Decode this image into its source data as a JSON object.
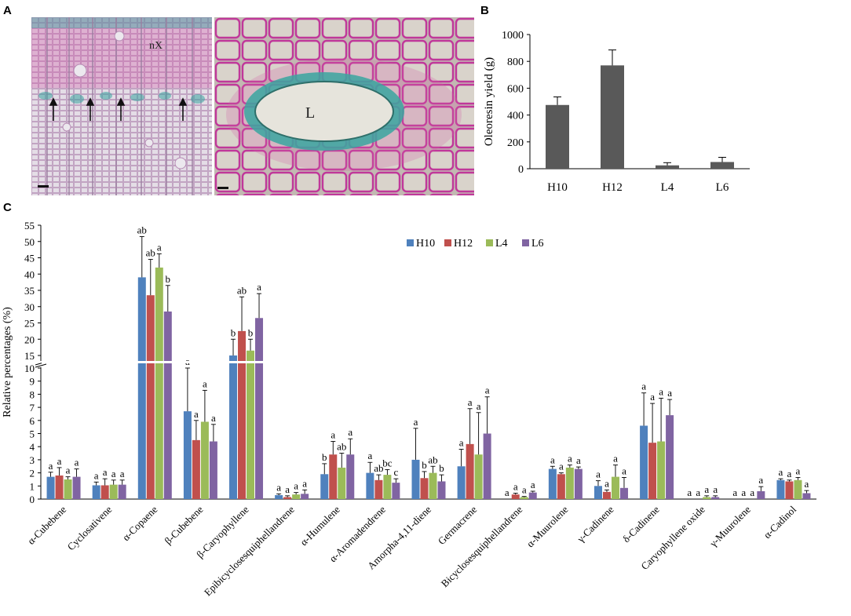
{
  "panels": {
    "a": "A",
    "b": "B",
    "c": "C"
  },
  "micrograph_labels": {
    "xylem": "nX",
    "lumen": "L"
  },
  "colors": {
    "H10": "#4f81bd",
    "H12": "#c0504d",
    "L4": "#9bbb59",
    "L6": "#8064a2",
    "bar_b": "#595959",
    "stain_pink": "#d35fa8",
    "stain_blue": "#3aa6a0"
  },
  "chart_data": [
    {
      "type": "bar",
      "panel": "B",
      "categories": [
        "H10",
        "H12",
        "L4",
        "L6"
      ],
      "values": [
        475,
        770,
        25,
        50
      ],
      "errors": [
        60,
        115,
        20,
        35
      ],
      "ylabel": "Oleoresin yield (g)",
      "ylim": [
        0,
        1000
      ],
      "yticks": [
        "0",
        "200",
        "400",
        "600",
        "800",
        "1000"
      ]
    },
    {
      "type": "bar",
      "panel": "C",
      "ylabel": "Relative percentages (%)",
      "yticks_low": [
        "0",
        "1",
        "2",
        "3",
        "4",
        "5",
        "6",
        "7",
        "8",
        "9",
        "10"
      ],
      "yticks_high": [
        "15",
        "20",
        "25",
        "30",
        "35",
        "40",
        "45",
        "50",
        "55"
      ],
      "axis_break": [
        10,
        15
      ],
      "legend": [
        "H10",
        "H12",
        "L4",
        "L6"
      ],
      "categories": [
        "α-Cubebene",
        "Cyclosativene",
        "α-Copaene",
        "β-Cubebene",
        "β-Caryophyllene",
        "Epibicyclosesquiphellandrene",
        "α-Humulene",
        "α-Aromadendrene",
        "Amorpha-4,11-diene",
        "Germacrene",
        "Bicyclosesquiphellandrene",
        "α-Muurolene",
        "γ-Cadinene",
        "δ-Cadinene",
        "Caryophyllene oxide",
        "γ-Muurolene",
        "α-Cadinol"
      ],
      "series": [
        {
          "name": "H10",
          "values": [
            1.7,
            1.05,
            39,
            6.7,
            14.5,
            0.3,
            1.9,
            2.0,
            3.0,
            2.5,
            0,
            2.3,
            1.0,
            5.6,
            0,
            0,
            1.45
          ],
          "errors": [
            0.35,
            0.25,
            12.5,
            3.3,
            5.5,
            0.1,
            0.8,
            0.8,
            2.4,
            1.3,
            0,
            0.2,
            0.4,
            2.5,
            0,
            0,
            0.1
          ],
          "letters": [
            "a",
            "a",
            "ab",
            "a",
            "b",
            "a",
            "b",
            "a",
            "a",
            "a",
            "a",
            "a",
            "a",
            "a",
            "a",
            "a",
            "a"
          ]
        },
        {
          "name": "H12",
          "values": [
            1.8,
            1.05,
            33.5,
            4.5,
            22.5,
            0.15,
            3.4,
            1.45,
            1.6,
            4.2,
            0.35,
            1.9,
            0.55,
            4.3,
            0,
            0,
            1.35
          ],
          "errors": [
            0.6,
            0.5,
            11,
            1.5,
            10.5,
            0.1,
            1.0,
            0.4,
            0.5,
            2.7,
            0.1,
            0.1,
            0.15,
            3.0,
            0,
            0,
            0.1
          ],
          "letters": [
            "a",
            "a",
            "ab",
            "a",
            "ab",
            "a",
            "a",
            "ab",
            "b",
            "a",
            "a",
            "a",
            "a",
            "a",
            "a",
            "a",
            "a"
          ]
        },
        {
          "name": "L4",
          "values": [
            1.5,
            1.1,
            42,
            5.9,
            16.5,
            0.35,
            2.4,
            1.85,
            2.0,
            3.4,
            0.15,
            2.4,
            1.7,
            4.4,
            0.15,
            0,
            1.45
          ],
          "errors": [
            0.2,
            0.35,
            4.2,
            2.4,
            3.5,
            0.15,
            1.1,
            0.4,
            0.5,
            3.2,
            0.05,
            0.2,
            0.9,
            3.3,
            0.1,
            0,
            0.2
          ],
          "letters": [
            "a",
            "a",
            "a",
            "a",
            "b",
            "a",
            "ab",
            "bc",
            "ab",
            "a",
            "a",
            "a",
            "a",
            "a",
            "a",
            "a",
            "a"
          ]
        },
        {
          "name": "L6",
          "values": [
            1.7,
            1.1,
            28.5,
            4.4,
            26.5,
            0.4,
            3.4,
            1.25,
            1.35,
            5.0,
            0.5,
            2.3,
            0.85,
            6.4,
            0.15,
            0.6,
            0.45
          ],
          "errors": [
            0.6,
            0.35,
            8,
            1.3,
            7.5,
            0.3,
            1.2,
            0.3,
            0.5,
            2.8,
            0.1,
            0.15,
            0.8,
            1.2,
            0.1,
            0.35,
            0.2
          ],
          "letters": [
            "a",
            "a",
            "b",
            "a",
            "a",
            "a",
            "a",
            "c",
            "b",
            "a",
            "a",
            "a",
            "a",
            "a",
            "a",
            "a",
            "a"
          ]
        }
      ]
    }
  ]
}
